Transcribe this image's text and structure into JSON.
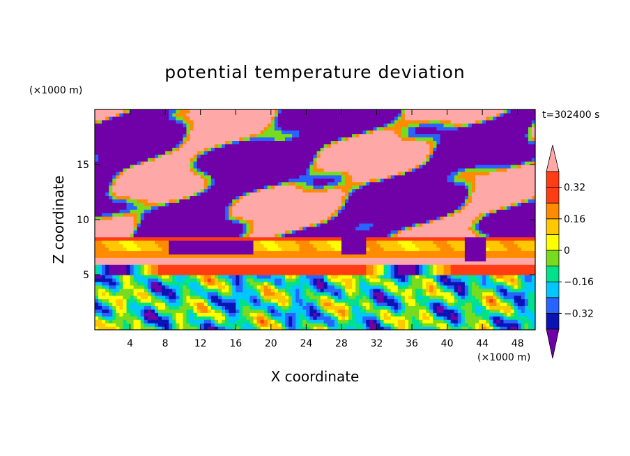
{
  "chart_data": {
    "type": "heatmap",
    "title": "potential temperature deviation",
    "xlabel": "X coordinate",
    "ylabel": "Z coordinate",
    "x_unit": "(×1000 m)",
    "y_unit": "(×1000 m)",
    "time_label": "t=302400 s",
    "xlim": [
      0,
      50
    ],
    "ylim": [
      0,
      20
    ],
    "x_ticks": [
      4,
      8,
      12,
      16,
      20,
      24,
      28,
      32,
      36,
      40,
      44,
      48
    ],
    "y_ticks": [
      5,
      10,
      15
    ],
    "colorbar": {
      "levels": [
        -0.4,
        -0.32,
        -0.24,
        -0.16,
        -0.08,
        0.0,
        0.08,
        0.16,
        0.24,
        0.32,
        0.4
      ],
      "tick_labels": [
        "0.32",
        "0.16",
        "0",
        "−0.16",
        "−0.32"
      ],
      "tick_values": [
        0.32,
        0.16,
        0,
        -0.16,
        -0.32
      ],
      "colors": [
        "#7000a8",
        "#0a14b4",
        "#2864ff",
        "#00c8ff",
        "#00e18c",
        "#78dc1e",
        "#ffff00",
        "#ffc800",
        "#ff8c00",
        "#ff3c14",
        "#ffa8a8"
      ],
      "extend": "both"
    }
  }
}
